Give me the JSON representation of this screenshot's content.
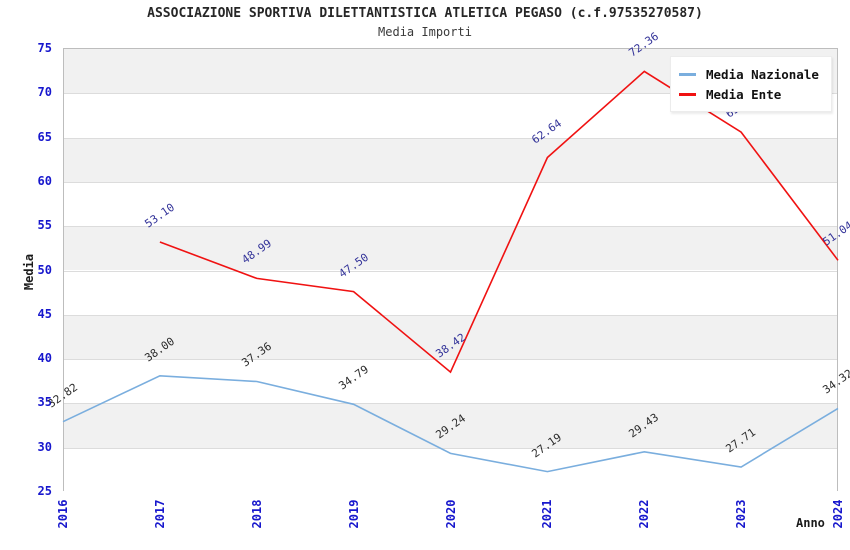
{
  "header": {
    "title": "ASSOCIAZIONE SPORTIVA DILETTANTISTICA ATLETICA PEGASO (c.f.97535270587)",
    "subtitle": "Media Importi"
  },
  "axes": {
    "y_title": "Media",
    "x_title": "Anno",
    "y_ticks": [
      25,
      30,
      35,
      40,
      45,
      50,
      55,
      60,
      65,
      70,
      75
    ],
    "tick_color": "#1717cd"
  },
  "chart_data": {
    "type": "line",
    "title": "ASSOCIAZIONE SPORTIVA DILETTANTISTICA ATLETICA PEGASO (c.f.97535270587)",
    "subtitle": "Media Importi",
    "xlabel": "Anno",
    "ylabel": "Media",
    "ylim": [
      25,
      75
    ],
    "ytick_step": 5,
    "grid": "horizontal",
    "legend_position": "top-right",
    "categories": [
      "2016",
      "2017",
      "2018",
      "2019",
      "2020",
      "2021",
      "2022",
      "2023",
      "2024"
    ],
    "series": [
      {
        "name": "Media Nazionale",
        "color": "#7aaede",
        "label_color": "#2b2b2b",
        "values": [
          32.82,
          38.0,
          37.36,
          34.79,
          29.24,
          27.19,
          29.43,
          27.71,
          34.32
        ]
      },
      {
        "name": "Media Ente",
        "color": "#f01212",
        "label_color": "#333399",
        "values": [
          null,
          53.1,
          48.99,
          47.5,
          38.42,
          62.64,
          72.36,
          65.51,
          51.04
        ]
      }
    ],
    "colors": {
      "band_gray": "#f1f1f1",
      "band_white": "#ffffff",
      "gridline": "#dcdcdc",
      "plot_border": "#bdbdbd"
    }
  }
}
